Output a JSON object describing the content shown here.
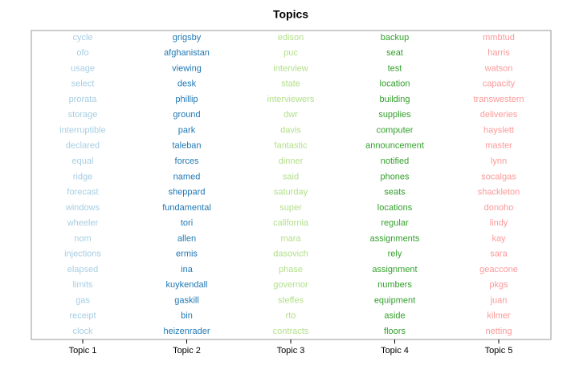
{
  "chart_data": {
    "type": "topic_words",
    "title": "Topics",
    "categories": [
      "Topic 1",
      "Topic 2",
      "Topic 3",
      "Topic 4",
      "Topic 5"
    ],
    "series": [
      {
        "color": "#a6cee3",
        "words": [
          "cycle",
          "ofo",
          "usage",
          "select",
          "prorata",
          "storage",
          "interruptible",
          "declared",
          "equal",
          "ridge",
          "forecast",
          "windows",
          "wheeler",
          "nom",
          "injections",
          "elapsed",
          "limits",
          "gas",
          "receipt",
          "clock"
        ]
      },
      {
        "color": "#1f78b4",
        "words": [
          "grigsby",
          "afghanistan",
          "viewing",
          "desk",
          "phillip",
          "ground",
          "park",
          "taleban",
          "forces",
          "named",
          "sheppard",
          "fundamental",
          "tori",
          "allen",
          "ermis",
          "ina",
          "kuykendall",
          "gaskill",
          "bin",
          "heizenrader"
        ]
      },
      {
        "color": "#b2df8a",
        "words": [
          "edison",
          "puc",
          "interview",
          "state",
          "interviewers",
          "dwr",
          "davis",
          "fantastic",
          "dinner",
          "said",
          "saturday",
          "super",
          "california",
          "mara",
          "dasovich",
          "phase",
          "governor",
          "steffes",
          "rto",
          "contracts"
        ]
      },
      {
        "color": "#33a02c",
        "words": [
          "backup",
          "seat",
          "test",
          "location",
          "building",
          "supplies",
          "computer",
          "announcement",
          "notified",
          "phones",
          "seats",
          "locations",
          "regular",
          "assignments",
          "rely",
          "assignment",
          "numbers",
          "equipment",
          "aside",
          "floors"
        ]
      },
      {
        "color": "#fb9a99",
        "words": [
          "mmbtud",
          "harris",
          "watson",
          "capacity",
          "transwestern",
          "deliveries",
          "hayslett",
          "master",
          "lynn",
          "socalgas",
          "shackleton",
          "donoho",
          "lindy",
          "kay",
          "sara",
          "geaccone",
          "pkgs",
          "juan",
          "kilmer",
          "netting"
        ]
      }
    ]
  }
}
